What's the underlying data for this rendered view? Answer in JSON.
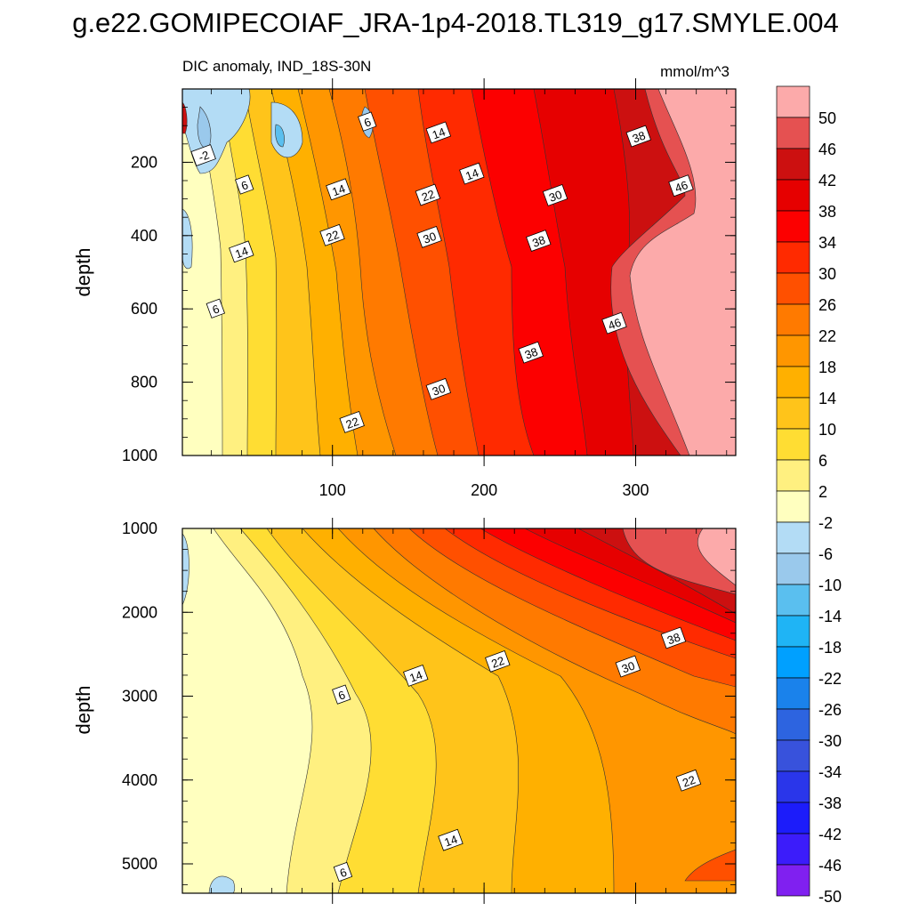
{
  "chart_data": {
    "type": "heatmap",
    "title": "g.e22.GOMIPECOIAF_JRA-1p4-2018.TL319_g17.SMYLE.004",
    "subtitle_left": "DIC anomaly, IND_18S-30N",
    "units": "mmol/m^3",
    "x_range": [
      1,
      366
    ],
    "x_ticks": [
      "100",
      "200",
      "300"
    ],
    "colorbar": {
      "levels": [
        "50",
        "46",
        "42",
        "38",
        "34",
        "30",
        "26",
        "22",
        "18",
        "14",
        "10",
        "6",
        "2",
        "-2",
        "-6",
        "-10",
        "-14",
        "-18",
        "-22",
        "-26",
        "-30",
        "-34",
        "-38",
        "-42",
        "-46",
        "-50"
      ],
      "colors": [
        "#fcaaaa",
        "#e55151",
        "#cc1010",
        "#e60000",
        "#fc0000",
        "#ff2a00",
        "#ff5000",
        "#ff7a00",
        "#ff9600",
        "#ffb000",
        "#ffc41a",
        "#ffdd33",
        "#fff080",
        "#ffffbf",
        "#b3dcf5",
        "#9ac9ec",
        "#5abfef",
        "#1fb4f5",
        "#00a0ff",
        "#1a82eb",
        "#2d64e0",
        "#3852dc",
        "#2a36ea",
        "#1c1cfa",
        "#3c1cfa",
        "#8020f0"
      ]
    },
    "panels": [
      {
        "ylabel": "depth",
        "y_range": [
          0,
          1000
        ],
        "y_ticks": [
          "200",
          "400",
          "600",
          "800",
          "1000"
        ],
        "x_tick_labels_shown": true,
        "contour_labels": [
          {
            "text": "6",
            "x": 123,
            "y": 90
          },
          {
            "text": "-2",
            "x": 15,
            "y": 182
          },
          {
            "text": "14",
            "x": 170,
            "y": 120
          },
          {
            "text": "38",
            "x": 302,
            "y": 130
          },
          {
            "text": "14",
            "x": 192,
            "y": 232
          },
          {
            "text": "6",
            "x": 42,
            "y": 262
          },
          {
            "text": "14",
            "x": 104,
            "y": 275
          },
          {
            "text": "22",
            "x": 163,
            "y": 290
          },
          {
            "text": "30",
            "x": 247,
            "y": 291
          },
          {
            "text": "46",
            "x": 330,
            "y": 265
          },
          {
            "text": "22",
            "x": 100,
            "y": 400
          },
          {
            "text": "30",
            "x": 164,
            "y": 405
          },
          {
            "text": "38",
            "x": 236,
            "y": 415
          },
          {
            "text": "14",
            "x": 40,
            "y": 445
          },
          {
            "text": "6",
            "x": 23,
            "y": 600
          },
          {
            "text": "46",
            "x": 286,
            "y": 640
          },
          {
            "text": "38",
            "x": 231,
            "y": 720
          },
          {
            "text": "30",
            "x": 170,
            "y": 820
          },
          {
            "text": "22",
            "x": 113,
            "y": 910
          }
        ]
      },
      {
        "ylabel": "depth",
        "y_range": [
          1000,
          5350
        ],
        "y_ticks": [
          "1000",
          "2000",
          "3000",
          "4000",
          "5000"
        ],
        "x_tick_labels_shown": false,
        "contour_labels": [
          {
            "text": "38",
            "x": 325,
            "y": 2310
          },
          {
            "text": "22",
            "x": 209,
            "y": 2590
          },
          {
            "text": "30",
            "x": 295,
            "y": 2650
          },
          {
            "text": "14",
            "x": 155,
            "y": 2760
          },
          {
            "text": "6",
            "x": 106,
            "y": 2985
          },
          {
            "text": "22",
            "x": 335,
            "y": 4010
          },
          {
            "text": "14",
            "x": 178,
            "y": 4720
          },
          {
            "text": "6",
            "x": 107,
            "y": 5100
          }
        ]
      }
    ]
  }
}
